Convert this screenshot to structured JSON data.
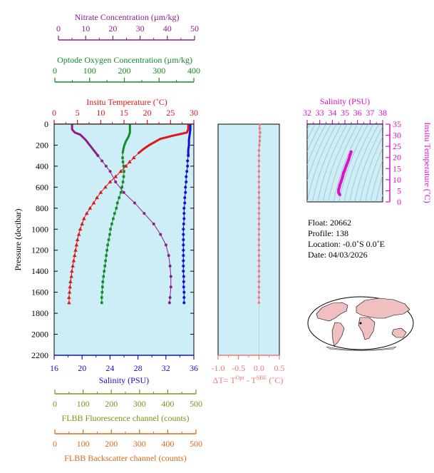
{
  "colors": {
    "nitrate": "#8b1e8b",
    "oxygen": "#128a26",
    "temperature": "#e01515",
    "salinity": "#1010d8",
    "delta": "#f07878",
    "ts": "#e010c8",
    "fluorescence": "#8a8a1c",
    "backscatter": "#d86a1c",
    "panel_bg": "#cdeef7",
    "land": "#f0c0c0",
    "ocean": "#ffffff"
  },
  "axes": {
    "nitrate": {
      "label": "Nitrate Concentration (µm/kg)",
      "ticks": [
        "0",
        "10",
        "20",
        "30",
        "40",
        "50"
      ],
      "range": [
        0,
        50
      ]
    },
    "oxygen": {
      "label": "Optode Oxygen Concentration (µm/kg)",
      "ticks": [
        "0",
        "100",
        "200",
        "300",
        "400"
      ],
      "range": [
        0,
        400
      ]
    },
    "temperature": {
      "label": "Insitu Temperature (˚C)",
      "ticks": [
        "0",
        "5",
        "10",
        "15",
        "20",
        "25",
        "30"
      ],
      "range": [
        0,
        30
      ]
    },
    "pressure": {
      "label": "Pressure (decibar)",
      "ticks": [
        "0",
        "200",
        "400",
        "600",
        "800",
        "1000",
        "1200",
        "1400",
        "1600",
        "1800",
        "2000",
        "2200"
      ],
      "range": [
        0,
        2200
      ]
    },
    "salinity": {
      "label": "Salinity (PSU)",
      "ticks": [
        "16",
        "20",
        "24",
        "28",
        "32",
        "36"
      ],
      "range": [
        16,
        36
      ]
    },
    "delta": {
      "label": "ΔT= T",
      "sup1": "Opt",
      "mid": " - T",
      "sup2": "SBE",
      "unit": " (˚C)",
      "ticks": [
        "-1.0",
        "-0.5",
        "0.0",
        "0.5"
      ],
      "range": [
        -1.0,
        0.5
      ]
    },
    "ts_salinity": {
      "label": "Salinity (PSU)",
      "ticks": [
        "32",
        "33",
        "34",
        "35",
        "36",
        "37",
        "38"
      ],
      "range": [
        32,
        38
      ]
    },
    "ts_temperature": {
      "label": "Insitu Temperature (˚C)",
      "ticks": [
        "0",
        "5",
        "10",
        "15",
        "20",
        "25",
        "30",
        "35"
      ],
      "range": [
        0,
        35
      ]
    },
    "fluorescence": {
      "label": "FLBB Fluorescence channel (counts)",
      "ticks": [
        "0",
        "100",
        "200",
        "300",
        "400",
        "500"
      ],
      "range": [
        0,
        500
      ]
    },
    "backscatter": {
      "label": "FLBB Backscatter channel (counts)",
      "ticks": [
        "0",
        "100",
        "200",
        "300",
        "400",
        "500"
      ],
      "range": [
        0,
        500
      ]
    }
  },
  "info": {
    "float": "Float:  20662",
    "profile": "Profile:  138",
    "location": "Location:  -0.0˚S   0.0˚E",
    "date": "Date:  04/03/2026"
  },
  "chart_data": [
    {
      "type": "line",
      "name": "Profile panel",
      "series": [
        {
          "name": "Nitrate",
          "x_units": "umol/kg",
          "points": [
            [
              5,
              5
            ],
            [
              5,
              25
            ],
            [
              5,
              50
            ],
            [
              6,
              80
            ],
            [
              8,
              100
            ],
            [
              10,
              150
            ],
            [
              11.5,
              200
            ],
            [
              13,
              250
            ],
            [
              14.5,
              300
            ],
            [
              16,
              350
            ],
            [
              17.5,
              400
            ],
            [
              19,
              450
            ],
            [
              21,
              550
            ],
            [
              24,
              650
            ],
            [
              28,
              750
            ],
            [
              31.5,
              850
            ],
            [
              35,
              950
            ],
            [
              37.5,
              1050
            ],
            [
              39.5,
              1150
            ],
            [
              40.5,
              1250
            ],
            [
              41,
              1350
            ],
            [
              41.3,
              1450
            ],
            [
              41.3,
              1550
            ],
            [
              41,
              1650
            ],
            [
              40.8,
              1700
            ]
          ]
        },
        {
          "name": "Oxygen",
          "x_units": "umol/kg",
          "points": [
            [
              216,
              5
            ],
            [
              216,
              40
            ],
            [
              216,
              80
            ],
            [
              212,
              120
            ],
            [
              205,
              160
            ],
            [
              200,
              200
            ],
            [
              197,
              240
            ],
            [
              195,
              280
            ],
            [
              195,
              320
            ],
            [
              196,
              360
            ],
            [
              198,
              400
            ],
            [
              199,
              450
            ],
            [
              198,
              500
            ],
            [
              196,
              550
            ],
            [
              193,
              600
            ],
            [
              190,
              650
            ],
            [
              185,
              700
            ],
            [
              180,
              750
            ],
            [
              177,
              800
            ],
            [
              172,
              850
            ],
            [
              168,
              900
            ],
            [
              164,
              950
            ],
            [
              160,
              1000
            ],
            [
              158,
              1050
            ],
            [
              155,
              1100
            ],
            [
              152,
              1150
            ],
            [
              150,
              1200
            ],
            [
              148,
              1250
            ],
            [
              146,
              1300
            ],
            [
              144,
              1350
            ],
            [
              142,
              1400
            ],
            [
              140,
              1450
            ],
            [
              138,
              1500
            ],
            [
              137,
              1550
            ],
            [
              136,
              1600
            ],
            [
              135,
              1650
            ],
            [
              135,
              1700
            ]
          ]
        },
        {
          "name": "Temperature",
          "x_units": "degC",
          "points": [
            [
              28.8,
              5
            ],
            [
              28.8,
              20
            ],
            [
              28.8,
              50
            ],
            [
              28.5,
              80
            ],
            [
              25.5,
              110
            ],
            [
              22.8,
              140
            ],
            [
              21.6,
              170
            ],
            [
              20.4,
              200
            ],
            [
              19.1,
              240
            ],
            [
              18.0,
              280
            ],
            [
              17.1,
              320
            ],
            [
              16.2,
              360
            ],
            [
              15.4,
              400
            ],
            [
              14.3,
              450
            ],
            [
              13.2,
              500
            ],
            [
              12.0,
              550
            ],
            [
              11.0,
              600
            ],
            [
              10.0,
              650
            ],
            [
              9.2,
              700
            ],
            [
              8.5,
              750
            ],
            [
              7.7,
              800
            ],
            [
              7.0,
              850
            ],
            [
              6.4,
              900
            ],
            [
              6.0,
              950
            ],
            [
              5.6,
              1000
            ],
            [
              5.3,
              1050
            ],
            [
              5.0,
              1100
            ],
            [
              4.8,
              1150
            ],
            [
              4.6,
              1200
            ],
            [
              4.4,
              1250
            ],
            [
              4.2,
              1300
            ],
            [
              4.0,
              1350
            ],
            [
              3.8,
              1400
            ],
            [
              3.7,
              1450
            ],
            [
              3.5,
              1500
            ],
            [
              3.4,
              1550
            ],
            [
              3.3,
              1600
            ],
            [
              3.2,
              1650
            ],
            [
              3.2,
              1700
            ]
          ]
        },
        {
          "name": "Salinity",
          "x_units": "PSU",
          "points": [
            [
              35.5,
              5
            ],
            [
              35.5,
              50
            ],
            [
              35.4,
              100
            ],
            [
              35.3,
              150
            ],
            [
              35.3,
              200
            ],
            [
              35.2,
              250
            ],
            [
              35.2,
              300
            ],
            [
              35.1,
              350
            ],
            [
              35.1,
              400
            ],
            [
              35.0,
              450
            ],
            [
              34.9,
              500
            ],
            [
              34.9,
              550
            ],
            [
              34.8,
              600
            ],
            [
              34.8,
              650
            ],
            [
              34.7,
              700
            ],
            [
              34.7,
              750
            ],
            [
              34.6,
              800
            ],
            [
              34.6,
              850
            ],
            [
              34.6,
              900
            ],
            [
              34.55,
              950
            ],
            [
              34.5,
              1000
            ],
            [
              34.5,
              1050
            ],
            [
              34.5,
              1100
            ],
            [
              34.5,
              1150
            ],
            [
              34.5,
              1200
            ],
            [
              34.5,
              1250
            ],
            [
              34.5,
              1300
            ],
            [
              34.5,
              1350
            ],
            [
              34.5,
              1400
            ],
            [
              34.55,
              1450
            ],
            [
              34.55,
              1500
            ],
            [
              34.55,
              1550
            ],
            [
              34.6,
              1600
            ],
            [
              34.6,
              1650
            ],
            [
              34.6,
              1700
            ]
          ]
        }
      ]
    },
    {
      "type": "line",
      "name": "Delta T panel",
      "series": [
        {
          "name": "Delta T",
          "x_units": "degC",
          "points": [
            [
              0.02,
              5
            ],
            [
              0.02,
              40
            ],
            [
              0.03,
              80
            ],
            [
              0.02,
              120
            ],
            [
              0.02,
              160
            ],
            [
              0.01,
              200
            ],
            [
              0.0,
              250
            ],
            [
              0.0,
              300
            ],
            [
              0.0,
              350
            ],
            [
              0.0,
              400
            ],
            [
              0.0,
              450
            ],
            [
              0.0,
              500
            ],
            [
              0.0,
              550
            ],
            [
              0.0,
              600
            ],
            [
              0.0,
              650
            ],
            [
              0.0,
              700
            ],
            [
              0.0,
              750
            ],
            [
              0.0,
              800
            ],
            [
              0.0,
              850
            ],
            [
              0.0,
              900
            ],
            [
              0.0,
              950
            ],
            [
              0.0,
              1000
            ],
            [
              0.0,
              1050
            ],
            [
              0.0,
              1100
            ],
            [
              0.0,
              1150
            ],
            [
              0.0,
              1200
            ],
            [
              0.0,
              1250
            ],
            [
              0.0,
              1300
            ],
            [
              0.0,
              1350
            ],
            [
              0.0,
              1400
            ],
            [
              0.0,
              1450
            ],
            [
              0.0,
              1500
            ],
            [
              0.0,
              1550
            ],
            [
              0.0,
              1600
            ],
            [
              0.0,
              1650
            ],
            [
              0.0,
              1700
            ]
          ]
        }
      ]
    },
    {
      "type": "line",
      "name": "T-S diagram",
      "series": [
        {
          "name": "T-S",
          "x_units": "PSU",
          "y_units": "degC",
          "points": [
            [
              34.6,
              3.2
            ],
            [
              34.55,
              3.6
            ],
            [
              34.5,
              4.2
            ],
            [
              34.5,
              4.8
            ],
            [
              34.5,
              5.6
            ],
            [
              34.55,
              6.4
            ],
            [
              34.6,
              7.7
            ],
            [
              34.7,
              9.2
            ],
            [
              34.8,
              11.0
            ],
            [
              34.9,
              13.2
            ],
            [
              35.0,
              14.5
            ],
            [
              35.1,
              16.2
            ],
            [
              35.2,
              17.6
            ],
            [
              35.3,
              19.1
            ],
            [
              35.4,
              21.0
            ],
            [
              35.5,
              22.6
            ]
          ]
        }
      ]
    }
  ]
}
